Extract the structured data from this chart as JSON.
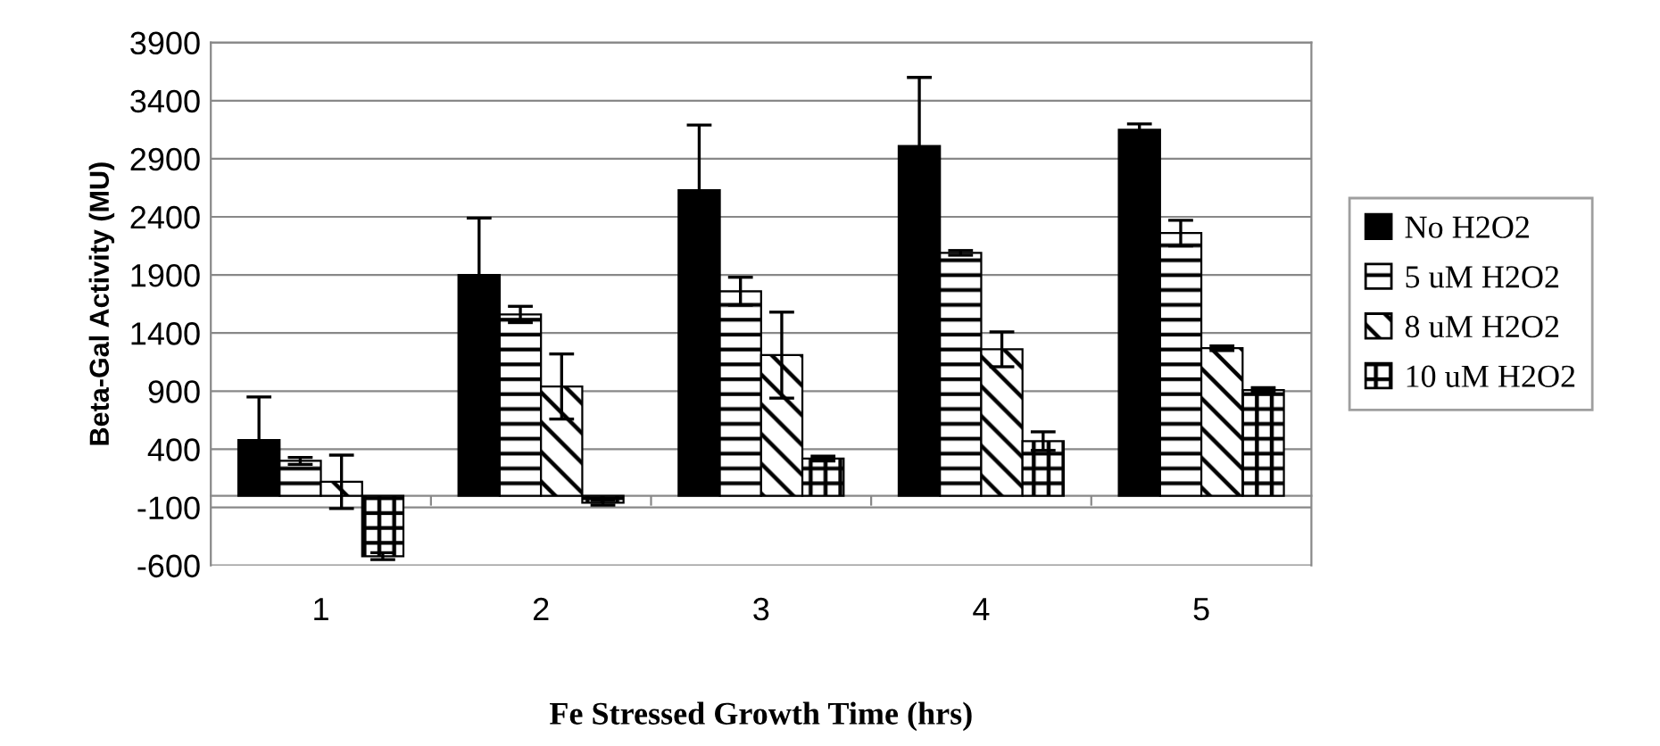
{
  "chart_data": {
    "type": "bar",
    "xlabel": "Fe Stressed Growth Time (hrs)",
    "ylabel": "Beta-Gal Activity (MU)",
    "categories": [
      "1",
      "2",
      "3",
      "4",
      "5"
    ],
    "series": [
      {
        "name": "No H2O2",
        "color": "#000000",
        "values": [
          480,
          1900,
          2630,
          3010,
          3150
        ],
        "errors": [
          370,
          490,
          560,
          590,
          50
        ]
      },
      {
        "name": "5 uM H2O2",
        "color": "#000000",
        "values": [
          300,
          1560,
          1760,
          2090,
          2260
        ],
        "errors": [
          30,
          70,
          120,
          20,
          110
        ]
      },
      {
        "name": "8 uM H2O2",
        "color": "#000000",
        "values": [
          120,
          940,
          1210,
          1260,
          1270
        ],
        "errors": [
          230,
          280,
          370,
          150,
          20
        ]
      },
      {
        "name": "10 uM H2O2",
        "color": "#000000",
        "values": [
          -520,
          -60,
          320,
          470,
          910
        ],
        "errors": [
          30,
          20,
          20,
          80,
          20
        ]
      }
    ],
    "ylim": [
      -600,
      3900
    ],
    "yticks": [
      -600,
      -100,
      400,
      900,
      1400,
      1900,
      2400,
      2900,
      3400,
      3900
    ],
    "grid": "y",
    "legend": "right"
  }
}
